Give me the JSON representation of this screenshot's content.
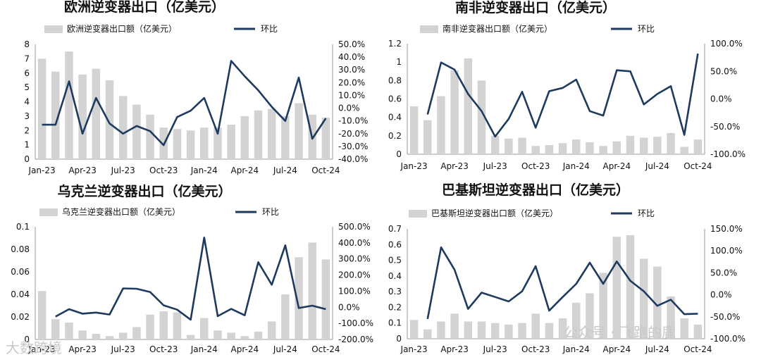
{
  "watermarks": {
    "bottom_left": "大数跨境",
    "bottom_right": "公众号 · 飞跑的鹿"
  },
  "colors": {
    "bar": "#d3d3d3",
    "line": "#1f3a5f",
    "text": "#111111"
  },
  "chart_data": [
    {
      "type": "bar+line",
      "title": "欧洲逆变器出口（亿美元）",
      "legend": [
        "欧洲逆变器出口额（亿美元）",
        "环比"
      ],
      "legend_placement": "top",
      "grid": false,
      "x": [
        "Jan-23",
        "Feb-23",
        "Mar-23",
        "Apr-23",
        "May-23",
        "Jun-23",
        "Jul-23",
        "Aug-23",
        "Sep-23",
        "Oct-23",
        "Nov-23",
        "Dec-23",
        "Jan-24",
        "Feb-24",
        "Mar-24",
        "Apr-24",
        "May-24",
        "Jun-24",
        "Jul-24",
        "Aug-24",
        "Sep-24",
        "Oct-24"
      ],
      "x_tick_labels": [
        "Jan-23",
        "Apr-23",
        "Jul-23",
        "Oct-23",
        "Jan-24",
        "Apr-24",
        "Jul-24",
        "Oct-24"
      ],
      "bar_values": [
        7.0,
        6.1,
        7.5,
        5.9,
        6.3,
        5.5,
        4.4,
        3.8,
        3.1,
        2.2,
        2.1,
        2.0,
        2.2,
        2.2,
        2.4,
        3.0,
        3.4,
        3.5,
        3.0,
        3.9,
        3.1,
        2.9
      ],
      "line_values": [
        -13,
        -13,
        21,
        -20,
        8,
        -12,
        -20,
        -14,
        -18,
        -29,
        -7,
        -2,
        8,
        -20,
        37,
        25,
        14,
        1,
        -10,
        24,
        -24,
        -8
      ],
      "y_left": {
        "min": 0,
        "max": 8,
        "ticks": [
          "0",
          "1",
          "2",
          "3",
          "4",
          "5",
          "6",
          "7",
          "8"
        ]
      },
      "y_right": {
        "min": -40,
        "max": 50,
        "ticks": [
          "-40.0%",
          "-30.0%",
          "-20.0%",
          "-10.0%",
          "0.0%",
          "10.0%",
          "20.0%",
          "30.0%",
          "40.0%",
          "50.0%"
        ]
      }
    },
    {
      "type": "bar+line",
      "title": "南非逆变器出口（亿美元）",
      "legend": [
        "南非逆变器出口额（亿美元）",
        "环比"
      ],
      "legend_placement": "top",
      "grid": false,
      "x": [
        "Jan-23",
        "Feb-23",
        "Mar-23",
        "Apr-23",
        "May-23",
        "Jun-23",
        "Jul-23",
        "Aug-23",
        "Sep-23",
        "Oct-23",
        "Nov-23",
        "Dec-23",
        "Jan-24",
        "Feb-24",
        "Mar-24",
        "Apr-24",
        "May-24",
        "Jun-24",
        "Jul-24",
        "Aug-24",
        "Sep-24",
        "Oct-24"
      ],
      "x_tick_labels": [
        "Jan-23",
        "Apr-23",
        "Jul-23",
        "Oct-23",
        "Jan-24",
        "Apr-24",
        "Jul-24",
        "Oct-24"
      ],
      "bar_values": [
        0.52,
        0.37,
        0.63,
        0.91,
        1.04,
        0.8,
        0.2,
        0.17,
        0.18,
        0.09,
        0.1,
        0.12,
        0.16,
        0.13,
        0.09,
        0.14,
        0.2,
        0.18,
        0.19,
        0.23,
        0.08,
        0.16
      ],
      "line_values": [
        -28,
        66,
        53,
        9,
        -22,
        -68,
        -36,
        13,
        -52,
        14,
        20,
        35,
        -22,
        -30,
        52,
        50,
        -10,
        9,
        23,
        -65,
        82
      ],
      "line_start_index": 1,
      "y_left": {
        "min": 0,
        "max": 1.2,
        "ticks": [
          "0",
          "0.2",
          "0.4",
          "0.6",
          "0.8",
          "1",
          "1.2"
        ]
      },
      "y_right": {
        "min": -100,
        "max": 100,
        "ticks": [
          "-100.0%",
          "-50.0%",
          "0.0%",
          "50.0%",
          "100.0%"
        ]
      }
    },
    {
      "type": "bar+line",
      "title": "乌克兰逆变器出口（亿美元）",
      "legend": [
        "乌克兰逆变器出口额（亿美元）",
        "环比"
      ],
      "legend_placement": "top",
      "grid": false,
      "x": [
        "Jan-23",
        "Feb-23",
        "Mar-23",
        "Apr-23",
        "May-23",
        "Jun-23",
        "Jul-23",
        "Aug-23",
        "Sep-23",
        "Oct-23",
        "Nov-23",
        "Dec-23",
        "Jan-24",
        "Feb-24",
        "Mar-24",
        "Apr-24",
        "May-24",
        "Jun-24",
        "Jul-24",
        "Aug-24",
        "Sep-24",
        "Oct-24"
      ],
      "x_tick_labels": [
        "Jan-23",
        "Apr-23",
        "Jul-23",
        "Oct-23",
        "Jan-24",
        "Apr-24",
        "Jul-24",
        "Oct-24"
      ],
      "bar_values": [
        0.043,
        0.018,
        0.015,
        0.008,
        0.005,
        0.003,
        0.006,
        0.011,
        0.022,
        0.025,
        0.024,
        0.004,
        0.019,
        0.008,
        0.006,
        0.003,
        0.007,
        0.016,
        0.04,
        0.073,
        0.086,
        0.071
      ],
      "line_values": [
        -58,
        -12,
        -40,
        -33,
        -45,
        117,
        115,
        95,
        12,
        -15,
        -77,
        433,
        -55,
        -10,
        -50,
        280,
        140,
        385,
        -5,
        10,
        -12
      ],
      "line_start_index": 1,
      "y_left": {
        "min": 0,
        "max": 0.1,
        "ticks": [
          "0",
          "0.02",
          "0.04",
          "0.06",
          "0.08",
          "0.1"
        ]
      },
      "y_right": {
        "min": -200,
        "max": 500,
        "ticks": [
          "-200.0%",
          "-100.0%",
          "0.0%",
          "100.0%",
          "200.0%",
          "300.0%",
          "400.0%",
          "500.0%"
        ]
      }
    },
    {
      "type": "bar+line",
      "title": "巴基斯坦逆变器出口（亿美元）",
      "legend": [
        "巴基斯坦逆变器出口额（亿美元）",
        "环比"
      ],
      "legend_placement": "top",
      "grid": false,
      "x": [
        "Jan-23",
        "Feb-23",
        "Mar-23",
        "Apr-23",
        "May-23",
        "Jun-23",
        "Jul-23",
        "Aug-23",
        "Sep-23",
        "Oct-23",
        "Nov-23",
        "Dec-23",
        "Jan-24",
        "Feb-24",
        "Mar-24",
        "Apr-24",
        "May-24",
        "Jun-24",
        "Jul-24",
        "Aug-24",
        "Sep-24",
        "Oct-24"
      ],
      "x_tick_labels": [
        "Jan-23",
        "Apr-23",
        "Jul-23",
        "Oct-23",
        "Jan-24",
        "Apr-24",
        "Jul-24",
        "Oct-24"
      ],
      "bar_values": [
        0.12,
        0.06,
        0.11,
        0.16,
        0.11,
        0.11,
        0.1,
        0.09,
        0.1,
        0.16,
        0.1,
        0.13,
        0.23,
        0.29,
        0.42,
        0.65,
        0.66,
        0.51,
        0.46,
        0.27,
        0.13,
        0.09
      ],
      "line_values": [
        -55,
        108,
        57,
        -32,
        5,
        -5,
        -15,
        8,
        65,
        -36,
        -5,
        25,
        73,
        25,
        76,
        32,
        8,
        -25,
        -11,
        -44,
        -43
      ],
      "line_start_index": 1,
      "y_left": {
        "min": 0,
        "max": 0.7,
        "ticks": [
          "0",
          "0.1",
          "0.2",
          "0.3",
          "0.4",
          "0.5",
          "0.6",
          "0.7"
        ]
      },
      "y_right": {
        "min": -100,
        "max": 150,
        "ticks": [
          "-100.0%",
          "-50.0%",
          "0.0%",
          "50.0%",
          "100.0%",
          "150.0%"
        ]
      }
    }
  ]
}
